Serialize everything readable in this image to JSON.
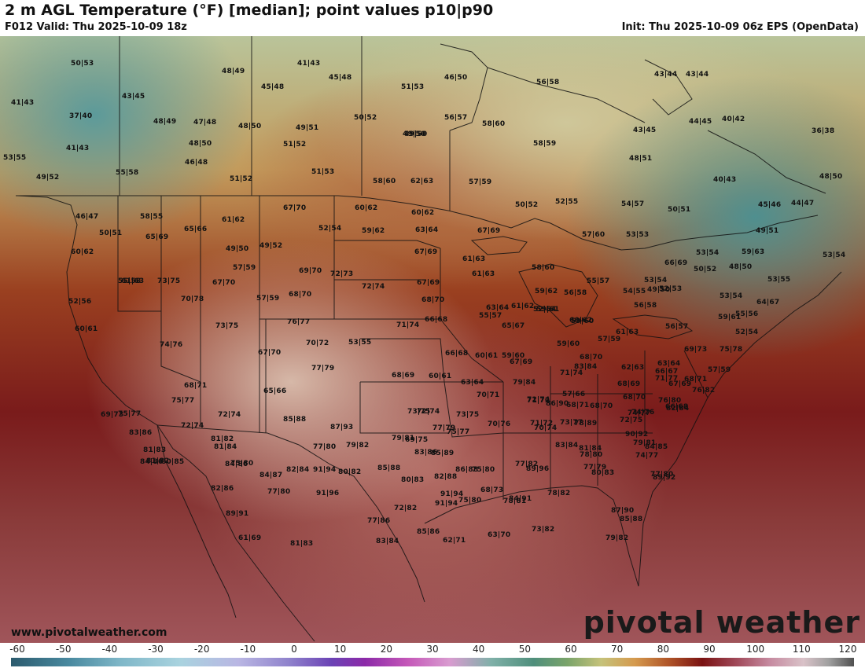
{
  "header": {
    "title": "2 m AGL Temperature (°F) [median]; point values p10|p90",
    "valid": "F012 Valid: Thu 2025-10-09 18z",
    "init": "Init: Thu 2025-10-09 06z EPS (OpenData)"
  },
  "footer": {
    "website": "www.pivotalweather.com",
    "logo": "pivotal weather"
  },
  "colorbar": {
    "ticks": [
      "-60",
      "-50",
      "-40",
      "-30",
      "-20",
      "-10",
      "0",
      "10",
      "20",
      "30",
      "40",
      "50",
      "60",
      "70",
      "80",
      "90",
      "100",
      "110",
      "120"
    ]
  },
  "point_values": [
    "50|53",
    "48|49",
    "41|43",
    "45|48",
    "51|53",
    "46|50",
    "56|58",
    "43|44",
    "43|44",
    "41|43",
    "43|45",
    "45|48",
    "37|40",
    "48|49",
    "47|48",
    "48|50",
    "49|51",
    "50|52",
    "56|57",
    "58|60",
    "43|45",
    "44|45",
    "40|42",
    "36|38",
    "41|43",
    "48|50",
    "51|52",
    "49|50",
    "58|59",
    "53|55",
    "46|48",
    "51|53",
    "48|51",
    "49|52",
    "55|58",
    "49|50",
    "51|52",
    "58|60",
    "62|63",
    "57|59",
    "40|43",
    "48|50",
    "52|55",
    "50|52",
    "54|57",
    "50|51",
    "45|46",
    "44|47",
    "46|47",
    "58|55",
    "67|70",
    "60|62",
    "60|62",
    "65|66",
    "61|62",
    "52|54",
    "59|62",
    "63|64",
    "67|69",
    "57|60",
    "53|53",
    "49|51",
    "50|51",
    "65|69",
    "66|69",
    "53|54",
    "49|52",
    "59|63",
    "49|50",
    "60|62",
    "67|69",
    "55|58",
    "61|63",
    "53|54",
    "61|63",
    "58|60",
    "57|59",
    "69|70",
    "72|73",
    "48|50",
    "50|52",
    "53|55",
    "61|63",
    "73|75",
    "67|70",
    "72|74",
    "67|69",
    "55|57",
    "59|62",
    "56|58",
    "53|54",
    "52|56",
    "70|78",
    "57|59",
    "68|70",
    "68|70",
    "54|55",
    "49|50",
    "52|53",
    "56|58",
    "53|54",
    "63|64",
    "61|62",
    "52|54",
    "64|67",
    "59|61",
    "55|57",
    "60|62",
    "73|75",
    "76|77",
    "71|74",
    "66|68",
    "65|67",
    "59|60",
    "55|56",
    "52|54",
    "59|61",
    "60|61",
    "74|76",
    "70|72",
    "53|55",
    "56|57",
    "61|63",
    "59|60",
    "57|59",
    "68|70",
    "75|78",
    "69|73",
    "67|70",
    "66|68",
    "60|61",
    "59|60",
    "67|69",
    "62|63",
    "63|64",
    "83|84",
    "57|59",
    "66|67",
    "67|69",
    "77|79",
    "71|77",
    "68|71",
    "68|69",
    "60|61",
    "63|64",
    "79|84",
    "71|74",
    "68|69",
    "68|71",
    "65|66",
    "72|74",
    "57|66",
    "74|77",
    "76|82",
    "74|76",
    "70|71",
    "68|71",
    "66|68",
    "68|70",
    "75|77",
    "72|74",
    "72|74",
    "73|75",
    "73|75",
    "71|72",
    "86|90",
    "71|72",
    "68|70",
    "72|75",
    "82|84",
    "76|80",
    "69|73",
    "72|74",
    "75|77",
    "85|88",
    "87|93",
    "79|81",
    "77|79",
    "75|77",
    "73|77",
    "70|76",
    "70|74",
    "90|92",
    "78|89",
    "83|84",
    "83|86",
    "81|82",
    "77|80",
    "79|82",
    "69|75",
    "81|84",
    "79|81",
    "81|83",
    "81|84",
    "84|86",
    "83|86",
    "75|80",
    "89|96",
    "78|80",
    "74|77",
    "84|85",
    "81|82",
    "84|86",
    "80|85",
    "75|80",
    "91|94",
    "85|88",
    "85|89",
    "86|88",
    "77|82",
    "77|79",
    "89|92",
    "84|87",
    "82|84",
    "80|82",
    "80|83",
    "82|88",
    "91|94",
    "68|73",
    "80|83",
    "77|80",
    "82|86",
    "77|80",
    "91|96",
    "78|81",
    "75|80",
    "84|91",
    "78|82",
    "87|90",
    "89|91",
    "77|86",
    "72|82",
    "91|94",
    "85|88",
    "81|83",
    "83|84",
    "85|86",
    "62|71",
    "63|70",
    "73|82",
    "79|82",
    "61|69"
  ]
}
